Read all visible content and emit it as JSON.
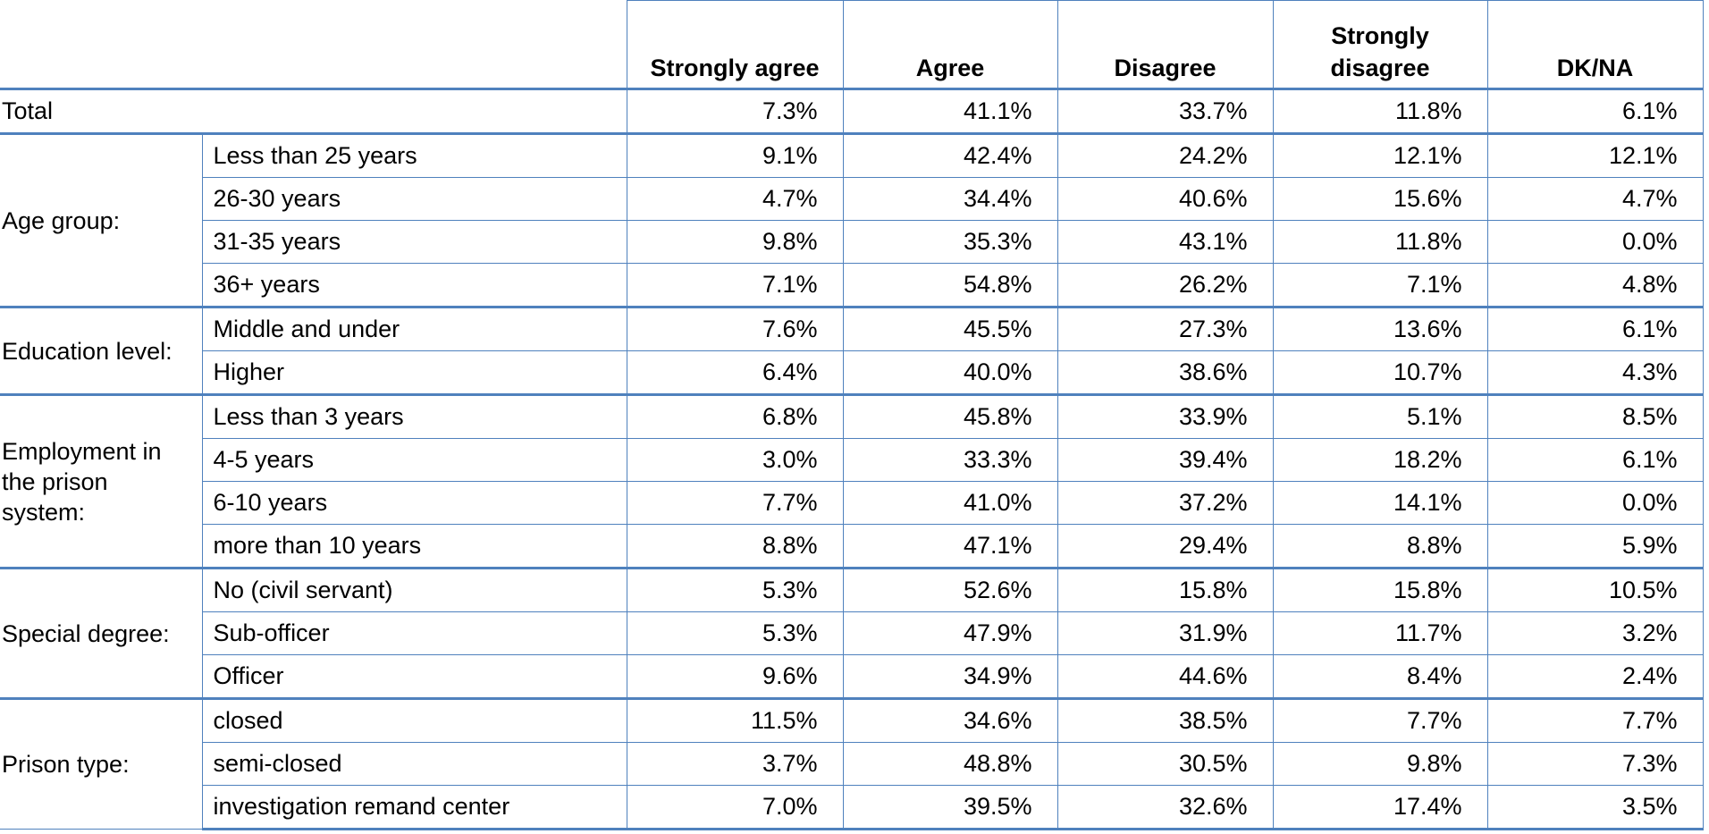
{
  "table": {
    "columns": [
      "Strongly agree",
      "Agree",
      "Disagree",
      "Strongly disagree",
      "DK/NA"
    ],
    "total": {
      "label": "Total",
      "values": [
        "7.3%",
        "41.1%",
        "33.7%",
        "11.8%",
        "6.1%"
      ]
    },
    "groups": [
      {
        "label": "Age group:",
        "rows": [
          {
            "label": "Less than 25 years",
            "values": [
              "9.1%",
              "42.4%",
              "24.2%",
              "12.1%",
              "12.1%"
            ]
          },
          {
            "label": "26-30 years",
            "values": [
              "4.7%",
              "34.4%",
              "40.6%",
              "15.6%",
              "4.7%"
            ]
          },
          {
            "label": "31-35 years",
            "values": [
              "9.8%",
              "35.3%",
              "43.1%",
              "11.8%",
              "0.0%"
            ]
          },
          {
            "label": "36+ years",
            "values": [
              "7.1%",
              "54.8%",
              "26.2%",
              "7.1%",
              "4.8%"
            ]
          }
        ]
      },
      {
        "label": "Education level:",
        "rows": [
          {
            "label": "Middle and under",
            "values": [
              "7.6%",
              "45.5%",
              "27.3%",
              "13.6%",
              "6.1%"
            ]
          },
          {
            "label": "Higher",
            "values": [
              "6.4%",
              "40.0%",
              "38.6%",
              "10.7%",
              "4.3%"
            ]
          }
        ]
      },
      {
        "label": "Employment in the prison system:",
        "rows": [
          {
            "label": "Less than 3 years",
            "values": [
              "6.8%",
              "45.8%",
              "33.9%",
              "5.1%",
              "8.5%"
            ]
          },
          {
            "label": "4-5 years",
            "values": [
              "3.0%",
              "33.3%",
              "39.4%",
              "18.2%",
              "6.1%"
            ]
          },
          {
            "label": "6-10 years",
            "values": [
              "7.7%",
              "41.0%",
              "37.2%",
              "14.1%",
              "0.0%"
            ]
          },
          {
            "label": "more than 10 years",
            "values": [
              "8.8%",
              "47.1%",
              "29.4%",
              "8.8%",
              "5.9%"
            ]
          }
        ]
      },
      {
        "label": "Special degree:",
        "rows": [
          {
            "label": "No (civil servant)",
            "values": [
              "5.3%",
              "52.6%",
              "15.8%",
              "15.8%",
              "10.5%"
            ]
          },
          {
            "label": "Sub-officer",
            "values": [
              "5.3%",
              "47.9%",
              "31.9%",
              "11.7%",
              "3.2%"
            ]
          },
          {
            "label": "Officer",
            "values": [
              "9.6%",
              "34.9%",
              "44.6%",
              "8.4%",
              "2.4%"
            ]
          }
        ]
      },
      {
        "label": "Prison type:",
        "rows": [
          {
            "label": "closed",
            "values": [
              "11.5%",
              "34.6%",
              "38.5%",
              "7.7%",
              "7.7%"
            ]
          },
          {
            "label": "semi-closed",
            "values": [
              "3.7%",
              "48.8%",
              "30.5%",
              "9.8%",
              "7.3%"
            ]
          },
          {
            "label": "investigation remand center",
            "values": [
              "7.0%",
              "39.5%",
              "32.6%",
              "17.4%",
              "3.5%"
            ]
          }
        ]
      }
    ]
  }
}
